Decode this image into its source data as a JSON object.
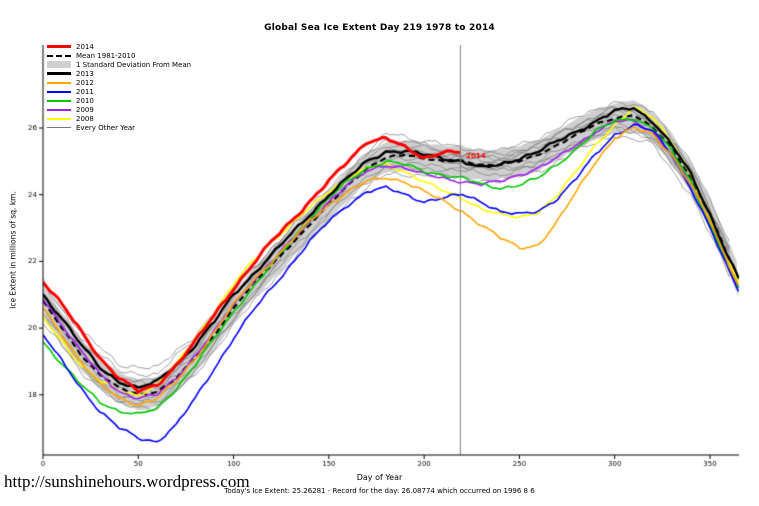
{
  "page": {
    "title": "Global Sea Ice Extent Day 219 1978 to 2014",
    "caption": "Today's Ice Extent: 25.26281  - Record for the day: 26.08774 which occurred on 1996 8 6",
    "url_text": "http://sunshinehours.wordpress.com"
  },
  "chart_data": {
    "type": "line",
    "title": "Global Sea Ice Extent Day 219 1978 to 2014",
    "xlabel": "Day of Year",
    "ylabel": "Ice Extent in millions of sq. km.",
    "xlim": [
      0,
      365
    ],
    "ylim": [
      16.2,
      28.5
    ],
    "xticks": [
      0,
      50,
      100,
      150,
      200,
      250,
      300,
      350
    ],
    "yticks": [
      18,
      20,
      22,
      24,
      26
    ],
    "grid": false,
    "legend_position": "top-left",
    "vline": {
      "x": 219,
      "color": "#808080"
    },
    "annotation": {
      "text": "2014",
      "x": 222,
      "y": 25.15,
      "color": "#FF0000"
    },
    "days": [
      0,
      10,
      20,
      30,
      40,
      50,
      60,
      70,
      80,
      90,
      100,
      110,
      120,
      130,
      140,
      150,
      160,
      170,
      180,
      190,
      200,
      210,
      220,
      230,
      240,
      250,
      260,
      270,
      280,
      290,
      300,
      310,
      320,
      330,
      340,
      350,
      360,
      365
    ],
    "mean": {
      "label": "Mean 1981-2010",
      "color": "#000000",
      "width": 2.2,
      "dash": [
        6,
        4
      ],
      "values": [
        20.8,
        20.0,
        19.2,
        18.6,
        18.2,
        18.0,
        18.1,
        18.5,
        19.1,
        19.8,
        20.6,
        21.3,
        21.9,
        22.5,
        23.1,
        23.7,
        24.3,
        24.8,
        25.1,
        25.2,
        25.1,
        25.0,
        25.0,
        24.9,
        24.9,
        25.0,
        25.2,
        25.5,
        25.8,
        26.1,
        26.3,
        26.4,
        26.0,
        25.4,
        24.5,
        23.4,
        22.1,
        21.4
      ]
    },
    "std_band": {
      "label": "1 Standard Deviation From Mean",
      "color": "#CFCFCF",
      "half_width": 0.45
    },
    "series": [
      {
        "name": "2008",
        "color": "#FFFF00",
        "width": 1.6,
        "values": [
          20.3,
          19.6,
          18.9,
          18.4,
          18.1,
          18.0,
          18.3,
          18.9,
          19.7,
          20.5,
          21.3,
          22.0,
          22.6,
          23.1,
          23.6,
          24.1,
          24.5,
          24.8,
          24.9,
          24.7,
          24.4,
          24.1,
          23.9,
          23.6,
          23.4,
          23.3,
          23.5,
          24.0,
          24.7,
          25.5,
          26.1,
          26.6,
          26.3,
          25.6,
          24.6,
          23.3,
          22.0,
          21.4
        ]
      },
      {
        "name": "2009",
        "color": "#A020F0",
        "width": 1.6,
        "values": [
          20.9,
          20.1,
          19.3,
          18.6,
          18.1,
          17.9,
          18.0,
          18.5,
          19.2,
          19.9,
          20.7,
          21.4,
          22.0,
          22.6,
          23.2,
          23.8,
          24.3,
          24.7,
          24.9,
          24.8,
          24.6,
          24.5,
          24.4,
          24.3,
          24.4,
          24.6,
          24.8,
          25.1,
          25.5,
          25.9,
          26.2,
          26.2,
          25.9,
          25.2,
          24.3,
          23.1,
          21.8,
          21.2
        ]
      },
      {
        "name": "2010",
        "color": "#00C800",
        "width": 1.6,
        "values": [
          19.6,
          18.9,
          18.3,
          17.8,
          17.5,
          17.4,
          17.6,
          18.2,
          18.9,
          19.7,
          20.5,
          21.2,
          21.9,
          22.6,
          23.3,
          23.9,
          24.4,
          24.8,
          25.0,
          24.9,
          24.7,
          24.6,
          24.5,
          24.3,
          24.2,
          24.3,
          24.5,
          24.9,
          25.4,
          25.9,
          26.2,
          26.3,
          26.0,
          25.3,
          24.4,
          23.1,
          21.8,
          21.2
        ]
      },
      {
        "name": "2011",
        "color": "#0000FF",
        "width": 1.6,
        "values": [
          19.8,
          19.0,
          18.2,
          17.5,
          17.0,
          16.7,
          16.6,
          17.1,
          17.9,
          18.8,
          19.7,
          20.5,
          21.2,
          21.9,
          22.6,
          23.2,
          23.7,
          24.1,
          24.2,
          24.0,
          23.8,
          23.9,
          24.0,
          23.8,
          23.5,
          23.4,
          23.5,
          23.9,
          24.5,
          25.2,
          25.8,
          26.1,
          25.9,
          25.2,
          24.2,
          23.0,
          21.7,
          21.1
        ]
      },
      {
        "name": "2012",
        "color": "#FFA500",
        "width": 1.6,
        "values": [
          20.6,
          19.8,
          19.0,
          18.3,
          17.9,
          17.7,
          17.9,
          18.4,
          19.1,
          19.9,
          20.7,
          21.4,
          22.0,
          22.6,
          23.2,
          23.7,
          24.1,
          24.4,
          24.5,
          24.4,
          24.1,
          23.8,
          23.5,
          23.1,
          22.7,
          22.4,
          22.5,
          23.2,
          24.1,
          25.0,
          25.7,
          26.0,
          25.8,
          25.2,
          24.3,
          23.2,
          21.9,
          21.3
        ]
      },
      {
        "name": "2013",
        "color": "#000000",
        "width": 2.4,
        "values": [
          21.0,
          20.3,
          19.5,
          18.8,
          18.4,
          18.2,
          18.4,
          18.9,
          19.5,
          20.2,
          21.0,
          21.6,
          22.2,
          22.8,
          23.4,
          24.0,
          24.5,
          25.0,
          25.3,
          25.3,
          25.2,
          25.1,
          25.0,
          24.8,
          24.9,
          25.1,
          25.3,
          25.6,
          25.9,
          26.2,
          26.5,
          26.6,
          26.2,
          25.5,
          24.6,
          23.4,
          22.1,
          21.5
        ]
      },
      {
        "name": "2014",
        "color": "#FF0000",
        "width": 3,
        "days": [
          0,
          10,
          20,
          30,
          40,
          50,
          60,
          70,
          80,
          90,
          100,
          110,
          120,
          130,
          140,
          150,
          160,
          170,
          180,
          190,
          200,
          210,
          219
        ],
        "values": [
          21.4,
          20.7,
          19.9,
          19.1,
          18.5,
          18.1,
          18.3,
          18.9,
          19.6,
          20.4,
          21.2,
          21.9,
          22.6,
          23.2,
          23.8,
          24.4,
          25.0,
          25.6,
          25.7,
          25.4,
          25.1,
          25.3,
          25.26
        ]
      }
    ],
    "other_years": {
      "label": "Every Other Year",
      "color": "#787878",
      "width": 0.7,
      "days": [
        0,
        20,
        40,
        60,
        80,
        100,
        120,
        140,
        160,
        180,
        200,
        220,
        240,
        260,
        280,
        300,
        320,
        340,
        360
      ],
      "series": [
        [
          21.4,
          19.7,
          18.7,
          18.6,
          19.7,
          21.1,
          22.4,
          23.6,
          24.8,
          25.6,
          25.6,
          25.4,
          25.3,
          25.7,
          26.3,
          26.8,
          26.5,
          25.0,
          22.6
        ],
        [
          21.1,
          19.6,
          18.5,
          18.4,
          19.4,
          20.9,
          22.3,
          23.4,
          24.6,
          25.5,
          25.4,
          25.2,
          25.2,
          25.5,
          26.1,
          26.6,
          26.3,
          24.8,
          22.4
        ],
        [
          21.0,
          19.4,
          18.4,
          18.3,
          19.3,
          20.8,
          22.1,
          23.3,
          24.5,
          25.3,
          25.3,
          25.1,
          25.1,
          25.4,
          26.0,
          26.5,
          26.2,
          24.7,
          22.3
        ],
        [
          20.9,
          19.3,
          18.3,
          18.2,
          19.2,
          20.7,
          22.0,
          23.2,
          24.4,
          25.2,
          25.2,
          25.1,
          25.0,
          25.3,
          25.9,
          26.4,
          26.1,
          24.6,
          22.2
        ],
        [
          20.8,
          19.2,
          18.2,
          18.1,
          19.1,
          20.6,
          21.9,
          23.1,
          24.3,
          25.1,
          25.1,
          25.0,
          24.9,
          25.2,
          25.8,
          26.3,
          26.0,
          24.5,
          22.1
        ],
        [
          20.6,
          19.0,
          18.0,
          17.9,
          18.9,
          20.4,
          21.7,
          22.9,
          24.1,
          24.9,
          24.9,
          24.8,
          24.8,
          25.0,
          25.6,
          26.1,
          25.8,
          24.3,
          21.9
        ],
        [
          20.5,
          18.9,
          17.9,
          17.8,
          18.8,
          20.3,
          21.6,
          22.8,
          24.0,
          24.8,
          24.8,
          24.7,
          24.6,
          24.9,
          25.5,
          26.0,
          25.7,
          24.2,
          21.8
        ],
        [
          20.3,
          18.7,
          17.7,
          17.6,
          18.6,
          20.1,
          21.4,
          22.6,
          23.8,
          24.6,
          24.6,
          24.5,
          24.4,
          24.7,
          25.3,
          25.8,
          25.5,
          24.0,
          21.6
        ],
        [
          21.3,
          19.9,
          18.9,
          18.8,
          19.8,
          21.2,
          22.4,
          23.5,
          24.5,
          25.3,
          25.1,
          24.9,
          24.7,
          24.9,
          25.5,
          26.0,
          25.7,
          24.2,
          21.8
        ],
        [
          20.2,
          18.8,
          17.8,
          17.7,
          18.7,
          20.3,
          21.7,
          23.2,
          24.6,
          25.9,
          25.5,
          25.2,
          25.1,
          25.5,
          26.1,
          26.6,
          26.3,
          24.8,
          22.4
        ]
      ]
    },
    "legend": [
      {
        "label": "2014",
        "color": "#FF0000",
        "type": "line",
        "width": 3
      },
      {
        "label": "Mean 1981-2010",
        "color": "#000000",
        "type": "dashed",
        "width": 2
      },
      {
        "label": "1 Standard Deviation From Mean",
        "color": "#CFCFCF",
        "type": "box"
      },
      {
        "label": "2013",
        "color": "#000000",
        "type": "line",
        "width": 3
      },
      {
        "label": "2012",
        "color": "#FFA500",
        "type": "line",
        "width": 2
      },
      {
        "label": "2011",
        "color": "#0000FF",
        "type": "line",
        "width": 2
      },
      {
        "label": "2010",
        "color": "#00C800",
        "type": "line",
        "width": 2
      },
      {
        "label": "2009",
        "color": "#A020F0",
        "type": "line",
        "width": 2
      },
      {
        "label": "2008",
        "color": "#FFFF00",
        "type": "line",
        "width": 2
      },
      {
        "label": "Every Other Year",
        "color": "#787878",
        "type": "line",
        "width": 1
      }
    ]
  }
}
